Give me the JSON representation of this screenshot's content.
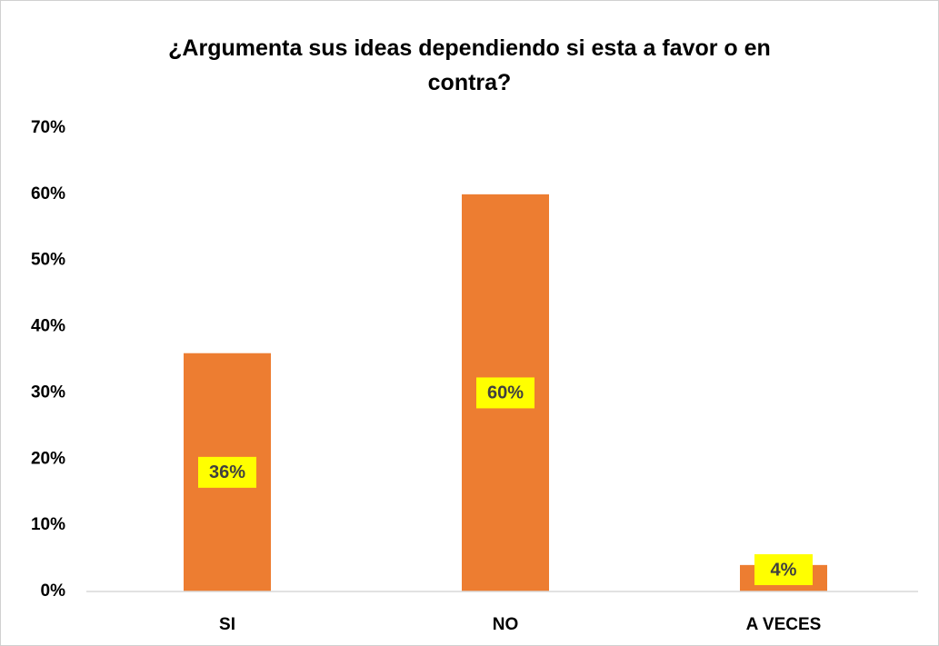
{
  "chart_data": {
    "type": "bar",
    "title": "¿Argumenta sus ideas dependiendo si esta a favor o en contra?",
    "categories": [
      "SI",
      "NO",
      "A VECES"
    ],
    "values": [
      36,
      60,
      4
    ],
    "value_labels": [
      "36%",
      "60%",
      "4%"
    ],
    "color": "#ed7d31",
    "label_background": "#ffff00",
    "ylim": [
      0,
      70
    ],
    "yticks": [
      {
        "value": 0,
        "label": "0%"
      },
      {
        "value": 10,
        "label": "10%"
      },
      {
        "value": 20,
        "label": "20%"
      },
      {
        "value": 30,
        "label": "30%"
      },
      {
        "value": 40,
        "label": "40%"
      },
      {
        "value": 50,
        "label": "50%"
      },
      {
        "value": 60,
        "label": "60%"
      },
      {
        "value": 70,
        "label": "70%"
      }
    ],
    "grid": false
  }
}
